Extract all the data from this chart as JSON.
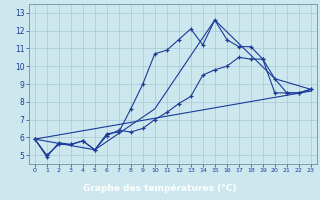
{
  "xlabel": "Graphe des températures (°C)",
  "bg_color": "#cce8ee",
  "grid_color": "#aac8d4",
  "line_color": "#1a3a9a",
  "xlabel_bg": "#1a1a6e",
  "xlabel_fg": "#ffffff",
  "xlim": [
    -0.5,
    23.5
  ],
  "ylim": [
    4.5,
    13.5
  ],
  "xticks": [
    0,
    1,
    2,
    3,
    4,
    5,
    6,
    7,
    8,
    9,
    10,
    11,
    12,
    13,
    14,
    15,
    16,
    17,
    18,
    19,
    20,
    21,
    22,
    23
  ],
  "yticks": [
    5,
    6,
    7,
    8,
    9,
    10,
    11,
    12,
    13
  ],
  "series1_x": [
    0,
    1,
    2,
    3,
    4,
    5,
    6,
    7,
    8,
    9,
    10,
    11,
    12,
    13,
    14,
    15,
    16,
    17,
    18,
    19,
    20,
    21,
    22,
    23
  ],
  "series1_y": [
    5.9,
    4.9,
    5.7,
    5.6,
    5.8,
    5.3,
    6.2,
    6.3,
    7.6,
    9.0,
    10.7,
    10.9,
    11.5,
    12.1,
    11.2,
    12.6,
    11.5,
    11.1,
    11.1,
    10.4,
    9.3,
    8.5,
    8.5,
    8.7
  ],
  "series2_x": [
    0,
    1,
    2,
    3,
    4,
    5,
    6,
    7,
    8,
    9,
    10,
    11,
    12,
    13,
    14,
    15,
    16,
    17,
    18,
    19,
    20,
    21,
    22,
    23
  ],
  "series2_y": [
    5.9,
    5.0,
    5.6,
    5.6,
    5.8,
    5.3,
    6.1,
    6.4,
    6.3,
    6.5,
    7.0,
    7.4,
    7.9,
    8.3,
    9.5,
    9.8,
    10.0,
    10.5,
    10.4,
    10.4,
    8.5,
    8.5,
    8.5,
    8.7
  ],
  "series3_x": [
    0,
    5,
    10,
    15,
    20,
    23
  ],
  "series3_y": [
    5.9,
    5.3,
    7.6,
    12.6,
    9.3,
    8.7
  ],
  "series4_x": [
    0,
    23
  ],
  "series4_y": [
    5.9,
    8.6
  ]
}
